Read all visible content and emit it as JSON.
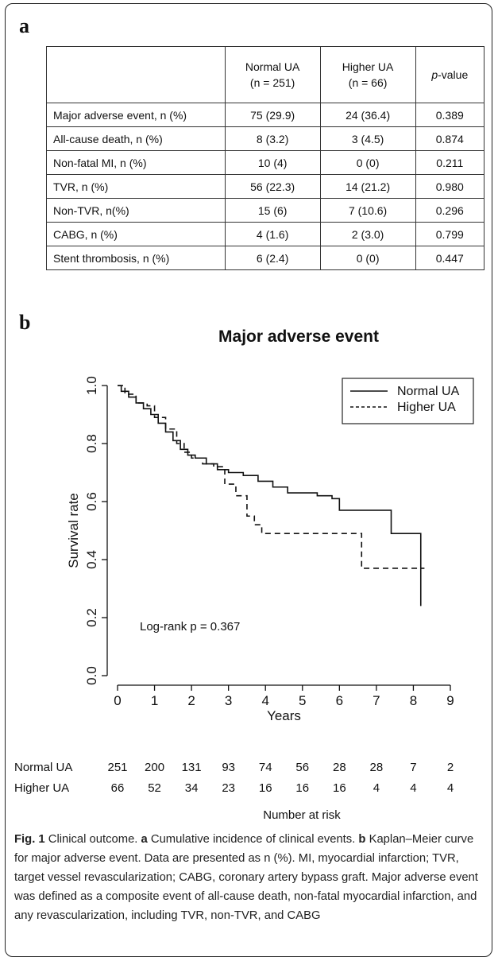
{
  "panel_a": {
    "letter": "a"
  },
  "table": {
    "headers": [
      "",
      "Normal UA\n(n = 251)",
      "Higher UA\n(n = 66)",
      "p-value"
    ],
    "header_parts": {
      "normal_line1": "Normal UA",
      "normal_line2": "(n = 251)",
      "higher_line1": "Higher UA",
      "higher_line2": "(n = 66)",
      "p_italic": "p",
      "p_rest": "-value"
    },
    "rows": [
      {
        "label": "Major adverse event, n (%)",
        "normal": "75 (29.9)",
        "higher": "24 (36.4)",
        "p": "0.389"
      },
      {
        "label": "All-cause death, n (%)",
        "normal": "8 (3.2)",
        "higher": "3 (4.5)",
        "p": "0.874"
      },
      {
        "label": "Non-fatal MI, n (%)",
        "normal": "10 (4)",
        "higher": "0 (0)",
        "p": "0.211"
      },
      {
        "label": "TVR, n (%)",
        "normal": "56 (22.3)",
        "higher": "14 (21.2)",
        "p": "0.980"
      },
      {
        "label": "Non-TVR, n(%)",
        "normal": "15 (6)",
        "higher": "7 (10.6)",
        "p": "0.296"
      },
      {
        "label": "CABG, n (%)",
        "normal": "4 (1.6)",
        "higher": "2 (3.0)",
        "p": "0.799"
      },
      {
        "label": "Stent thrombosis, n (%)",
        "normal": "6 (2.4)",
        "higher": "0 (0)",
        "p": "0.447"
      }
    ]
  },
  "panel_b": {
    "letter": "b"
  },
  "chart_data": {
    "type": "line",
    "title": "Major adverse event",
    "xlabel": "Years",
    "ylabel": "Survival rate",
    "xlim": [
      0,
      9
    ],
    "ylim": [
      0,
      1
    ],
    "xticks": [
      "0",
      "1",
      "2",
      "3",
      "4",
      "5",
      "6",
      "7",
      "8",
      "9"
    ],
    "yticks": [
      "0.0",
      "0.2",
      "0.4",
      "0.6",
      "0.8",
      "1.0"
    ],
    "legend_position": "top-right",
    "annotation": "Log-rank p = 0.367",
    "series": [
      {
        "name": "Normal UA",
        "style": "solid",
        "x": [
          0,
          0.1,
          0.3,
          0.5,
          0.7,
          0.9,
          1.1,
          1.3,
          1.5,
          1.7,
          1.9,
          2.1,
          2.4,
          2.7,
          3.0,
          3.4,
          3.8,
          4.2,
          4.6,
          5.0,
          5.4,
          5.8,
          6.0,
          6.5,
          7.0,
          7.4,
          7.8,
          8.1,
          8.2
        ],
        "y": [
          1.0,
          0.98,
          0.96,
          0.94,
          0.92,
          0.9,
          0.87,
          0.84,
          0.81,
          0.78,
          0.76,
          0.75,
          0.73,
          0.71,
          0.7,
          0.69,
          0.67,
          0.65,
          0.63,
          0.63,
          0.62,
          0.61,
          0.57,
          0.57,
          0.57,
          0.49,
          0.49,
          0.49,
          0.24
        ]
      },
      {
        "name": "Higher UA",
        "style": "dashed",
        "x": [
          0,
          0.2,
          0.5,
          0.8,
          1.0,
          1.3,
          1.6,
          1.8,
          2.0,
          2.3,
          2.6,
          2.9,
          3.2,
          3.5,
          3.7,
          3.9,
          4.5,
          5.5,
          6.5,
          6.6,
          7.5,
          8.3
        ],
        "y": [
          1.0,
          0.97,
          0.94,
          0.93,
          0.89,
          0.85,
          0.8,
          0.77,
          0.75,
          0.73,
          0.72,
          0.66,
          0.62,
          0.55,
          0.52,
          0.49,
          0.49,
          0.49,
          0.49,
          0.37,
          0.37,
          0.37
        ]
      }
    ],
    "risk_table": {
      "title": "Number at risk",
      "rows": [
        {
          "label": "Normal UA",
          "values": [
            "251",
            "200",
            "131",
            "93",
            "74",
            "56",
            "28",
            "28",
            "7",
            "2"
          ]
        },
        {
          "label": "Higher UA",
          "values": [
            "66",
            "52",
            "34",
            "23",
            "16",
            "16",
            "16",
            "4",
            "4",
            "4"
          ]
        }
      ]
    }
  },
  "caption": {
    "fig_label": "Fig. 1",
    "text1": " Clinical outcome. ",
    "a_label": "a",
    "text2": " Cumulative incidence of clinical events. ",
    "b_label": "b",
    "text3": " Kaplan–Meier curve for major adverse event. Data are presented as n (%). MI, myocardial infarction; TVR, target vessel revascularization; CABG, coronary artery bypass graft. Major adverse event was defined as a composite event of all-cause death, non-fatal myocardial infarction, and any revascularization, including TVR, non-TVR, and CABG"
  }
}
